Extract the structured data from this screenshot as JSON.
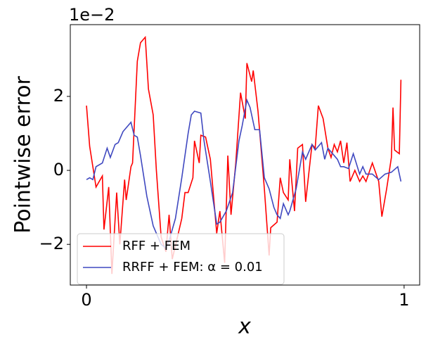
{
  "chart_data": {
    "type": "line",
    "x_label": "x",
    "y_label": "Pointwise error",
    "y_offset_label": "1e−2",
    "xlim": [
      -0.051,
      1.049
    ],
    "ylim": [
      -3.1,
      3.94
    ],
    "xticks": [
      0,
      1
    ],
    "yticks": [
      {
        "value": -2,
        "label": "−2"
      },
      0,
      2
    ],
    "grid": false,
    "legend": "lower left",
    "series": [
      {
        "name": "RFF + FEM",
        "color": "#ff0000",
        "x": [
          0,
          0.01,
          0.02,
          0.03,
          0.05,
          0.055,
          0.07,
          0.08,
          0.095,
          0.105,
          0.12,
          0.125,
          0.14,
          0.145,
          0.16,
          0.17,
          0.185,
          0.195,
          0.21,
          0.22,
          0.235,
          0.25,
          0.26,
          0.27,
          0.3,
          0.31,
          0.32,
          0.335,
          0.34,
          0.355,
          0.36,
          0.375,
          0.39,
          0.41,
          0.42,
          0.435,
          0.445,
          0.455,
          0.47,
          0.485,
          0.5,
          0.505,
          0.52,
          0.525,
          0.54,
          0.56,
          0.575,
          0.58,
          0.6,
          0.61,
          0.62,
          0.635,
          0.64,
          0.655,
          0.665,
          0.68,
          0.69,
          0.71,
          0.72,
          0.73,
          0.745,
          0.76,
          0.77,
          0.78,
          0.79,
          0.8,
          0.81,
          0.82,
          0.83,
          0.845,
          0.86,
          0.87,
          0.88,
          0.9,
          0.92,
          0.93,
          0.945,
          0.96,
          0.965,
          0.97,
          0.985,
          0.99
        ],
        "values": [
          1.75,
          0.65,
          0.1,
          -0.45,
          -0.15,
          -1.6,
          -0.45,
          -2.8,
          -0.6,
          -2.0,
          -0.25,
          -0.8,
          0.1,
          0.2,
          2.95,
          3.45,
          3.6,
          2.2,
          1.5,
          0,
          -1.8,
          -2.2,
          -1.2,
          -2.4,
          -1.3,
          -0.6,
          -0.6,
          -0.2,
          0.8,
          0.2,
          0.95,
          0.9,
          0.3,
          -1.7,
          -1.1,
          -2.5,
          0.4,
          -1.2,
          0.2,
          2.1,
          1.4,
          2.9,
          2.4,
          2.7,
          1.6,
          -0.5,
          -2.3,
          -1.55,
          -1.4,
          -0.2,
          -0.6,
          -0.8,
          0.3,
          -1.1,
          0.6,
          0.7,
          -0.85,
          0.7,
          0.6,
          1.75,
          1.4,
          0.6,
          0.35,
          0.7,
          0.5,
          0.8,
          0.2,
          0.75,
          -0.3,
          0,
          -0.3,
          -0.15,
          -0.3,
          0.2,
          -0.3,
          -1.25,
          -0.5,
          0.35,
          1.7,
          0.55,
          0.45,
          2.45
        ]
      },
      {
        "name": "RRFF + FEM: α = 0.01",
        "color": "#3f48c0",
        "x": [
          0,
          0.01,
          0.02,
          0.03,
          0.05,
          0.065,
          0.075,
          0.09,
          0.1,
          0.115,
          0.14,
          0.15,
          0.16,
          0.17,
          0.19,
          0.21,
          0.22,
          0.235,
          0.25,
          0.26,
          0.28,
          0.3,
          0.32,
          0.33,
          0.34,
          0.36,
          0.37,
          0.39,
          0.41,
          0.42,
          0.44,
          0.46,
          0.48,
          0.49,
          0.505,
          0.515,
          0.53,
          0.545,
          0.56,
          0.575,
          0.59,
          0.6,
          0.61,
          0.62,
          0.635,
          0.64,
          0.66,
          0.68,
          0.69,
          0.71,
          0.72,
          0.74,
          0.75,
          0.76,
          0.775,
          0.79,
          0.8,
          0.81,
          0.825,
          0.84,
          0.86,
          0.87,
          0.88,
          0.9,
          0.92,
          0.94,
          0.96,
          0.98,
          0.99
        ],
        "values": [
          -0.25,
          -0.2,
          -0.25,
          0.1,
          0.2,
          0.6,
          0.35,
          0.7,
          0.75,
          1.05,
          1.3,
          0.95,
          0.9,
          0.4,
          -0.7,
          -1.5,
          -1.7,
          -2.0,
          -2.1,
          -1.9,
          -1.3,
          -0.2,
          1.0,
          1.5,
          1.6,
          1.55,
          0.8,
          -0.3,
          -1.45,
          -1.4,
          -1.1,
          -0.6,
          0.8,
          1.2,
          1.9,
          1.7,
          1.1,
          1.1,
          -0.2,
          -0.5,
          -1.0,
          -1.2,
          -1.3,
          -0.9,
          -1.2,
          -1.1,
          -0.5,
          0.5,
          0.3,
          0.7,
          0.55,
          0.75,
          0.3,
          0.6,
          0.45,
          0.3,
          0.1,
          0.1,
          0.05,
          0.45,
          -0.1,
          0.1,
          -0.1,
          -0.1,
          -0.25,
          -0.1,
          -0.05,
          0.1,
          -0.3
        ]
      }
    ]
  }
}
